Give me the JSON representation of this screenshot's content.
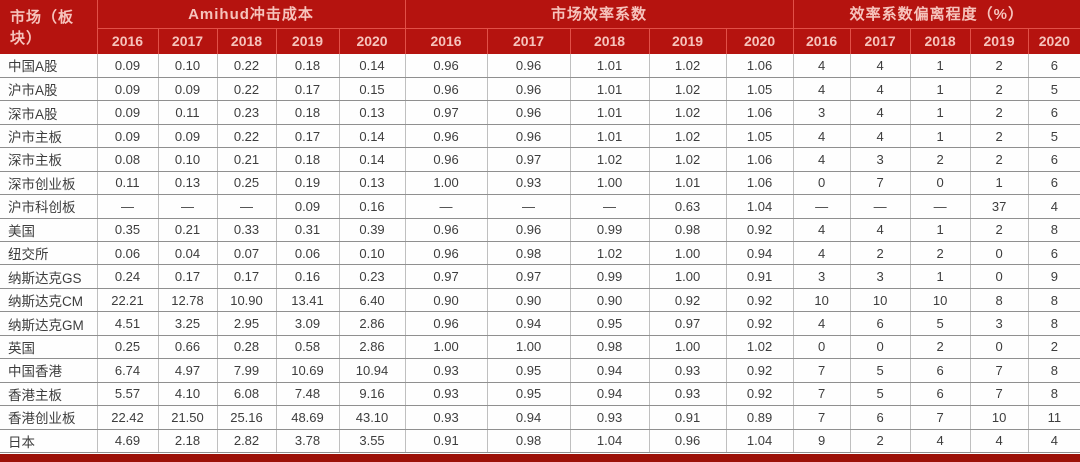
{
  "chart_data": {
    "type": "table",
    "market_header": "市场（板块）",
    "groups": [
      {
        "key": "amihud",
        "label": "Amihud冲击成本",
        "years": [
          "2016",
          "2017",
          "2018",
          "2019",
          "2020"
        ]
      },
      {
        "key": "efficiency",
        "label": "市场效率系数",
        "years": [
          "2016",
          "2017",
          "2018",
          "2019",
          "2020"
        ]
      },
      {
        "key": "deviation",
        "label": "效率系数偏离程度（%）",
        "years": [
          "2016",
          "2017",
          "2018",
          "2019",
          "2020"
        ]
      }
    ],
    "rows": [
      {
        "market": "中国A股",
        "amihud": [
          "0.09",
          "0.10",
          "0.22",
          "0.18",
          "0.14"
        ],
        "efficiency": [
          "0.96",
          "0.96",
          "1.01",
          "1.02",
          "1.06"
        ],
        "deviation": [
          "4",
          "4",
          "1",
          "2",
          "6"
        ]
      },
      {
        "market": "沪市A股",
        "amihud": [
          "0.09",
          "0.09",
          "0.22",
          "0.17",
          "0.15"
        ],
        "efficiency": [
          "0.96",
          "0.96",
          "1.01",
          "1.02",
          "1.05"
        ],
        "deviation": [
          "4",
          "4",
          "1",
          "2",
          "5"
        ]
      },
      {
        "market": "深市A股",
        "amihud": [
          "0.09",
          "0.11",
          "0.23",
          "0.18",
          "0.13"
        ],
        "efficiency": [
          "0.97",
          "0.96",
          "1.01",
          "1.02",
          "1.06"
        ],
        "deviation": [
          "3",
          "4",
          "1",
          "2",
          "6"
        ]
      },
      {
        "market": "沪市主板",
        "amihud": [
          "0.09",
          "0.09",
          "0.22",
          "0.17",
          "0.14"
        ],
        "efficiency": [
          "0.96",
          "0.96",
          "1.01",
          "1.02",
          "1.05"
        ],
        "deviation": [
          "4",
          "4",
          "1",
          "2",
          "5"
        ]
      },
      {
        "market": "深市主板",
        "amihud": [
          "0.08",
          "0.10",
          "0.21",
          "0.18",
          "0.14"
        ],
        "efficiency": [
          "0.96",
          "0.97",
          "1.02",
          "1.02",
          "1.06"
        ],
        "deviation": [
          "4",
          "3",
          "2",
          "2",
          "6"
        ]
      },
      {
        "market": "深市创业板",
        "amihud": [
          "0.11",
          "0.13",
          "0.25",
          "0.19",
          "0.13"
        ],
        "efficiency": [
          "1.00",
          "0.93",
          "1.00",
          "1.01",
          "1.06"
        ],
        "deviation": [
          "0",
          "7",
          "0",
          "1",
          "6"
        ]
      },
      {
        "market": "沪市科创板",
        "amihud": [
          "—",
          "—",
          "—",
          "0.09",
          "0.16"
        ],
        "efficiency": [
          "—",
          "—",
          "—",
          "0.63",
          "1.04"
        ],
        "deviation": [
          "—",
          "—",
          "—",
          "37",
          "4"
        ]
      },
      {
        "market": "美国",
        "amihud": [
          "0.35",
          "0.21",
          "0.33",
          "0.31",
          "0.39"
        ],
        "efficiency": [
          "0.96",
          "0.96",
          "0.99",
          "0.98",
          "0.92"
        ],
        "deviation": [
          "4",
          "4",
          "1",
          "2",
          "8"
        ]
      },
      {
        "market": "纽交所",
        "amihud": [
          "0.06",
          "0.04",
          "0.07",
          "0.06",
          "0.10"
        ],
        "efficiency": [
          "0.96",
          "0.98",
          "1.02",
          "1.00",
          "0.94"
        ],
        "deviation": [
          "4",
          "2",
          "2",
          "0",
          "6"
        ]
      },
      {
        "market": "纳斯达克GS",
        "amihud": [
          "0.24",
          "0.17",
          "0.17",
          "0.16",
          "0.23"
        ],
        "efficiency": [
          "0.97",
          "0.97",
          "0.99",
          "1.00",
          "0.91"
        ],
        "deviation": [
          "3",
          "3",
          "1",
          "0",
          "9"
        ]
      },
      {
        "market": "纳斯达克CM",
        "amihud": [
          "22.21",
          "12.78",
          "10.90",
          "13.41",
          "6.40"
        ],
        "efficiency": [
          "0.90",
          "0.90",
          "0.90",
          "0.92",
          "0.92"
        ],
        "deviation": [
          "10",
          "10",
          "10",
          "8",
          "8"
        ]
      },
      {
        "market": "纳斯达克GM",
        "amihud": [
          "4.51",
          "3.25",
          "2.95",
          "3.09",
          "2.86"
        ],
        "efficiency": [
          "0.96",
          "0.94",
          "0.95",
          "0.97",
          "0.92"
        ],
        "deviation": [
          "4",
          "6",
          "5",
          "3",
          "8"
        ]
      },
      {
        "market": "英国",
        "amihud": [
          "0.25",
          "0.66",
          "0.28",
          "0.58",
          "2.86"
        ],
        "efficiency": [
          "1.00",
          "1.00",
          "0.98",
          "1.00",
          "1.02"
        ],
        "deviation": [
          "0",
          "0",
          "2",
          "0",
          "2"
        ]
      },
      {
        "market": "中国香港",
        "amihud": [
          "6.74",
          "4.97",
          "7.99",
          "10.69",
          "10.94"
        ],
        "efficiency": [
          "0.93",
          "0.95",
          "0.94",
          "0.93",
          "0.92"
        ],
        "deviation": [
          "7",
          "5",
          "6",
          "7",
          "8"
        ]
      },
      {
        "market": "香港主板",
        "amihud": [
          "5.57",
          "4.10",
          "6.08",
          "7.48",
          "9.16"
        ],
        "efficiency": [
          "0.93",
          "0.95",
          "0.94",
          "0.93",
          "0.92"
        ],
        "deviation": [
          "7",
          "5",
          "6",
          "7",
          "8"
        ]
      },
      {
        "market": "香港创业板",
        "amihud": [
          "22.42",
          "21.50",
          "25.16",
          "48.69",
          "43.10"
        ],
        "efficiency": [
          "0.93",
          "0.94",
          "0.93",
          "0.91",
          "0.89"
        ],
        "deviation": [
          "7",
          "6",
          "7",
          "10",
          "11"
        ]
      },
      {
        "market": "日本",
        "amihud": [
          "4.69",
          "2.18",
          "2.82",
          "3.78",
          "3.55"
        ],
        "efficiency": [
          "0.91",
          "0.98",
          "1.04",
          "0.96",
          "1.04"
        ],
        "deviation": [
          "9",
          "2",
          "4",
          "4",
          "4"
        ]
      }
    ]
  },
  "colors": {
    "header_bg": "#b5130f",
    "header_text": "#f6c3bc",
    "header_border": "#e25048",
    "body_text": "#3d3d3d",
    "row_line": "#8f8f8f",
    "col_line": "#bfbfbf",
    "bottom_bar": "#9c1108"
  }
}
